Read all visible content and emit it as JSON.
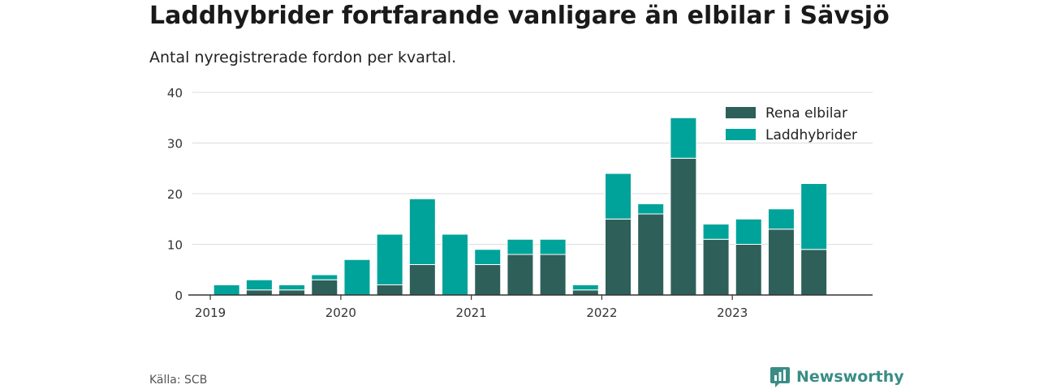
{
  "title": "Laddhybrider fortfarande vanligare än elbilar i Sävsjö",
  "subtitle": "Antal nyregistrerade fordon per kvartal.",
  "source": "Källa: SCB",
  "brand": {
    "name": "Newsworthy",
    "icon": "newsworthy-logo-icon",
    "color": "#3a8d85"
  },
  "chart_data": {
    "type": "bar",
    "stacked": true,
    "categories": [
      "2019 Q1",
      "2019 Q2",
      "2019 Q3",
      "2019 Q4",
      "2020 Q1",
      "2020 Q2",
      "2020 Q3",
      "2020 Q4",
      "2021 Q1",
      "2021 Q2",
      "2021 Q3",
      "2021 Q4",
      "2022 Q1",
      "2022 Q2",
      "2022 Q3",
      "2022 Q4",
      "2023 Q1",
      "2023 Q2",
      "2023 Q3",
      "2023 Q4"
    ],
    "series": [
      {
        "name": "Rena elbilar",
        "color": "#2f5f59",
        "values": [
          0,
          1,
          1,
          3,
          0,
          2,
          6,
          0,
          6,
          8,
          8,
          1,
          15,
          16,
          27,
          11,
          10,
          13,
          9,
          0
        ]
      },
      {
        "name": "Laddhybrider",
        "color": "#00a39a",
        "values": [
          2,
          2,
          1,
          1,
          7,
          10,
          13,
          12,
          3,
          3,
          3,
          1,
          9,
          2,
          8,
          3,
          5,
          4,
          13,
          0
        ]
      }
    ],
    "x_tick_labels": [
      "2019",
      "2020",
      "2021",
      "2022",
      "2023"
    ],
    "y_ticks": [
      0,
      10,
      20,
      30,
      40
    ],
    "ylim": [
      0,
      40
    ],
    "grid": true,
    "legend_position": "top-right"
  }
}
